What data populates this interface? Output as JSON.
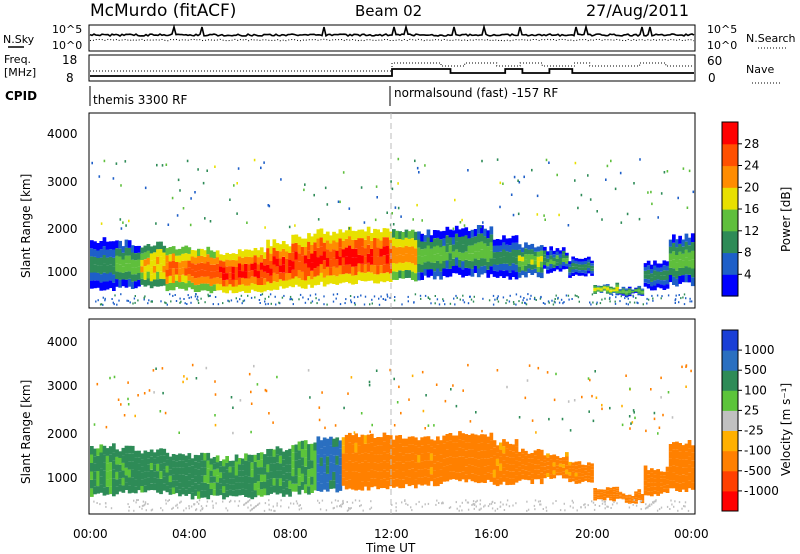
{
  "header": {
    "station": "McMurdo (fitACF)",
    "beam": "Beam 02",
    "date": "27/Aug/2011"
  },
  "top_panels": {
    "nsky_label": "N.Sky",
    "nsky_ticks": [
      "10^5",
      "10^0"
    ],
    "nsearch_label": "N.Search",
    "nsearch_ticks": [
      "10^5",
      "10^0"
    ],
    "freq_label_1": "Freq.",
    "freq_label_2": "[MHz]",
    "freq_ticks": [
      "18",
      "8"
    ],
    "nave_label": "Nave",
    "nave_ticks": [
      "60",
      "0"
    ],
    "cpid_label": "CPID",
    "cpid_segments": [
      {
        "text": "themis 3300 RF",
        "start_hour": 0
      },
      {
        "text": "normalsound (fast) -157 RF",
        "start_hour": 12
      }
    ]
  },
  "colorbars": {
    "power": {
      "label": "Power [dB]",
      "ticks": [
        "28",
        "24",
        "20",
        "16",
        "12",
        "8",
        "4"
      ],
      "colors": [
        "#0000ff",
        "#1e5fc8",
        "#2e8b57",
        "#5fbf3c",
        "#e8e000",
        "#ff8c00",
        "#ff5000",
        "#ff0000"
      ]
    },
    "velocity": {
      "label": "Velocity [m s⁻¹]",
      "ticks": [
        "1000",
        "500",
        "100",
        "25",
        "-25",
        "-100",
        "-500",
        "-1000"
      ],
      "colors": [
        "#1a3fd6",
        "#2a6fc0",
        "#2e8b57",
        "#5cc43a",
        "#c0c0c0",
        "#ffb000",
        "#ff8000",
        "#ff4000",
        "#ff0000"
      ]
    }
  },
  "chart_data": [
    {
      "type": "heatmap",
      "title": "Power",
      "xlabel": "",
      "ylabel": "Slant Range [km]",
      "xlim": [
        0,
        24
      ],
      "ylim": [
        180,
        4600
      ],
      "y_ticks": [
        "1000",
        "2000",
        "3000",
        "4000"
      ],
      "bands_hour_lowkm_highkm_db": [
        [
          0,
          600,
          1700,
          10
        ],
        [
          1,
          650,
          1650,
          14
        ],
        [
          2,
          650,
          1600,
          20
        ],
        [
          3,
          600,
          1550,
          24
        ],
        [
          4,
          550,
          1500,
          26
        ],
        [
          5,
          550,
          1450,
          28
        ],
        [
          6,
          550,
          1500,
          28
        ],
        [
          7,
          600,
          1650,
          28
        ],
        [
          8,
          650,
          1800,
          28
        ],
        [
          9,
          700,
          1900,
          28
        ],
        [
          10,
          750,
          1950,
          28
        ],
        [
          11,
          750,
          1950,
          28
        ],
        [
          12,
          800,
          1900,
          22
        ],
        [
          13,
          850,
          1900,
          14
        ],
        [
          14,
          900,
          2000,
          12
        ],
        [
          15,
          900,
          2000,
          14
        ],
        [
          16,
          850,
          1800,
          10
        ],
        [
          17,
          900,
          1600,
          16
        ],
        [
          18,
          1000,
          1500,
          12
        ],
        [
          19,
          900,
          1300,
          10
        ],
        [
          20,
          500,
          700,
          18
        ],
        [
          21,
          450,
          650,
          14
        ],
        [
          22,
          600,
          1200,
          10
        ],
        [
          23,
          700,
          1800,
          14
        ]
      ]
    },
    {
      "type": "heatmap",
      "title": "Velocity",
      "xlabel": "Time UT",
      "ylabel": "Slant Range [km]",
      "xlim": [
        0,
        24
      ],
      "ylim": [
        180,
        4600
      ],
      "x_ticks": [
        "00:00",
        "04:00",
        "08:00",
        "12:00",
        "16:00",
        "20:00",
        "00:00"
      ],
      "y_ticks": [
        "1000",
        "2000",
        "3000",
        "4000"
      ],
      "bands_hour_lowkm_highkm_ms": [
        [
          0,
          600,
          1700,
          120
        ],
        [
          1,
          650,
          1650,
          150
        ],
        [
          2,
          650,
          1600,
          140
        ],
        [
          3,
          600,
          1550,
          160
        ],
        [
          4,
          550,
          1500,
          150
        ],
        [
          5,
          550,
          1450,
          140
        ],
        [
          6,
          550,
          1500,
          130
        ],
        [
          7,
          600,
          1650,
          150
        ],
        [
          8,
          650,
          1800,
          100
        ],
        [
          9,
          700,
          1900,
          600
        ],
        [
          10,
          750,
          1950,
          -150
        ],
        [
          11,
          750,
          1950,
          -180
        ],
        [
          12,
          800,
          1900,
          -200
        ],
        [
          13,
          850,
          1900,
          -150
        ],
        [
          14,
          900,
          2000,
          -200
        ],
        [
          15,
          900,
          2000,
          -180
        ],
        [
          16,
          850,
          1800,
          -150
        ],
        [
          17,
          900,
          1600,
          -200
        ],
        [
          18,
          1000,
          1500,
          -150
        ],
        [
          19,
          900,
          1300,
          -150
        ],
        [
          20,
          500,
          700,
          -200
        ],
        [
          21,
          450,
          650,
          -200
        ],
        [
          22,
          600,
          1200,
          -200
        ],
        [
          23,
          700,
          1800,
          -180
        ]
      ]
    }
  ]
}
